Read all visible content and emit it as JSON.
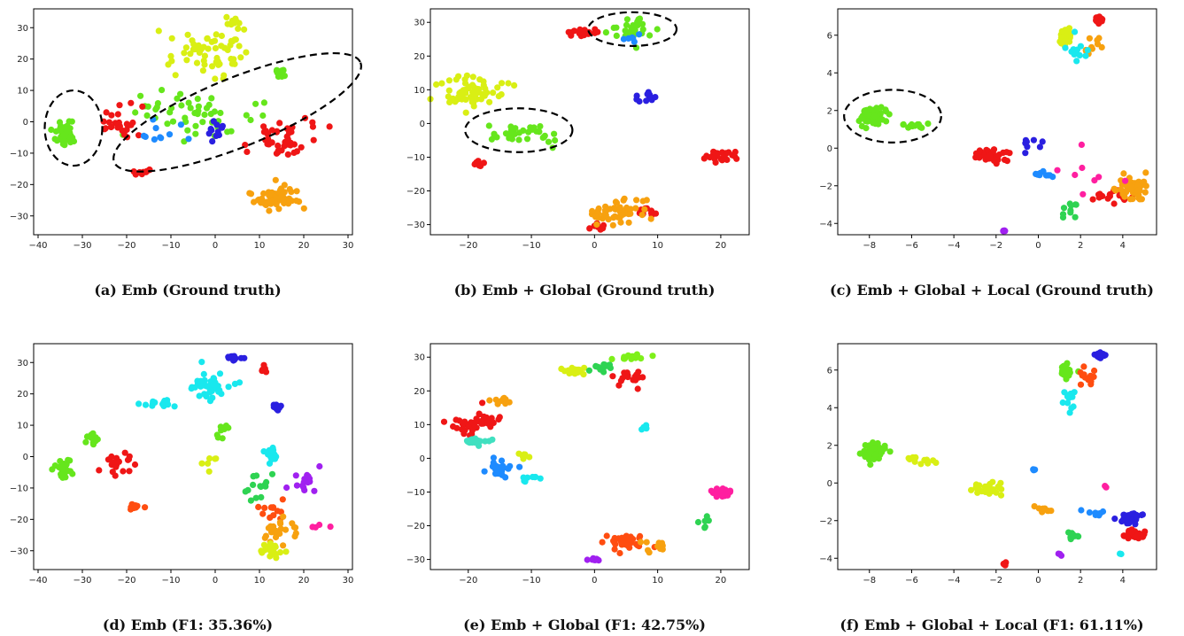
{
  "captions": {
    "a": "(a) Emb (Ground truth)",
    "b": "(b) Emb + Global (Ground truth)",
    "c": "(c) Emb + Global + Local (Ground truth)",
    "d": "(d) Emb (F1: 35.36%)",
    "e": "(e) Emb + Global (F1: 42.75%)",
    "f": "(f) Emb + Global + Local (F1: 61.11%)"
  },
  "chart_data": [
    {
      "id": "a",
      "type": "scatter",
      "xlim": [
        -41,
        31
      ],
      "ylim": [
        -36,
        36
      ],
      "xticks": [
        -40,
        -30,
        -20,
        -10,
        0,
        10,
        20,
        30
      ],
      "yticks": [
        -30,
        -20,
        -10,
        0,
        10,
        20,
        30
      ],
      "grid": false,
      "ellipses": [
        {
          "cx": -32,
          "cy": -2,
          "rx": 6.5,
          "ry": 12,
          "angle": 0
        },
        {
          "cx": 5,
          "cy": 3,
          "rx": 30,
          "ry": 11,
          "angle": 22
        }
      ],
      "clusters": [
        {
          "color": "#d9ef14",
          "cx": -2,
          "cy": 22,
          "sx": 8,
          "sy": 6,
          "n": 60
        },
        {
          "color": "#d9ef14",
          "cx": 4,
          "cy": 32,
          "sx": 2,
          "sy": 1,
          "n": 8
        },
        {
          "color": "#66e61c",
          "cx": -34,
          "cy": -4,
          "sx": 2,
          "sy": 3,
          "n": 35
        },
        {
          "color": "#66e61c",
          "cx": -5,
          "cy": 2,
          "sx": 12,
          "sy": 6,
          "n": 50
        },
        {
          "color": "#66e61c",
          "cx": 15,
          "cy": 16,
          "sx": 1.5,
          "sy": 1.5,
          "n": 10
        },
        {
          "color": "#ef1616",
          "cx": 15,
          "cy": -6,
          "sx": 6,
          "sy": 5,
          "n": 45
        },
        {
          "color": "#ef1616",
          "cx": -22,
          "cy": 0,
          "sx": 4,
          "sy": 4,
          "n": 25
        },
        {
          "color": "#ef1616",
          "cx": -17,
          "cy": -16,
          "sx": 2,
          "sy": 1,
          "n": 10
        },
        {
          "color": "#f7a10f",
          "cx": 14,
          "cy": -24,
          "sx": 5,
          "sy": 4,
          "n": 55
        },
        {
          "color": "#2a1fe0",
          "cx": 0,
          "cy": -2,
          "sx": 2,
          "sy": 3,
          "n": 12
        },
        {
          "color": "#1e8bff",
          "cx": -12,
          "cy": -4,
          "sx": 5,
          "sy": 4,
          "n": 10
        }
      ]
    },
    {
      "id": "b",
      "type": "scatter",
      "xlim": [
        -26,
        24.5
      ],
      "ylim": [
        -33,
        34
      ],
      "xticks": [
        -20,
        -10,
        0,
        10,
        20
      ],
      "yticks": [
        -30,
        -20,
        -10,
        0,
        10,
        20,
        30
      ],
      "grid": false,
      "ellipses": [
        {
          "cx": 6,
          "cy": 28,
          "rx": 7,
          "ry": 5,
          "angle": 0
        },
        {
          "cx": -12,
          "cy": -2,
          "rx": 8.5,
          "ry": 6.5,
          "angle": 0
        }
      ],
      "clusters": [
        {
          "color": "#d9ef14",
          "cx": -19,
          "cy": 9,
          "sx": 4,
          "sy": 4,
          "n": 60
        },
        {
          "color": "#66e61c",
          "cx": -11,
          "cy": -3,
          "sx": 4,
          "sy": 2.5,
          "n": 35
        },
        {
          "color": "#66e61c",
          "cx": 6,
          "cy": 28,
          "sx": 3,
          "sy": 3,
          "n": 30
        },
        {
          "color": "#ef1616",
          "cx": -2,
          "cy": 27,
          "sx": 2,
          "sy": 1,
          "n": 25
        },
        {
          "color": "#ef1616",
          "cx": 20,
          "cy": -10,
          "sx": 2,
          "sy": 1.5,
          "n": 25
        },
        {
          "color": "#ef1616",
          "cx": -19,
          "cy": -12,
          "sx": 1,
          "sy": 1,
          "n": 8
        },
        {
          "color": "#ef1616",
          "cx": 8,
          "cy": -26,
          "sx": 2,
          "sy": 2,
          "n": 12
        },
        {
          "color": "#ef1616",
          "cx": 1,
          "cy": -31,
          "sx": 1.5,
          "sy": 1,
          "n": 8
        },
        {
          "color": "#f7a10f",
          "cx": 4,
          "cy": -26,
          "sx": 4,
          "sy": 3,
          "n": 50
        },
        {
          "color": "#2a1fe0",
          "cx": 9,
          "cy": 8,
          "sx": 3,
          "sy": 2,
          "n": 10
        },
        {
          "color": "#1e8bff",
          "cx": 6,
          "cy": 25,
          "sx": 1.5,
          "sy": 1.5,
          "n": 6
        }
      ]
    },
    {
      "id": "c",
      "type": "scatter",
      "xlim": [
        -9.5,
        5.6
      ],
      "ylim": [
        -4.6,
        7.4
      ],
      "xticks": [
        -8,
        -6,
        -4,
        -2,
        0,
        2,
        4
      ],
      "yticks": [
        -4,
        -2,
        0,
        2,
        4,
        6
      ],
      "grid": false,
      "ellipses": [
        {
          "cx": -6.9,
          "cy": 1.7,
          "rx": 2.3,
          "ry": 1.4,
          "angle": 0
        }
      ],
      "clusters": [
        {
          "color": "#66e61c",
          "cx": -7.8,
          "cy": 1.7,
          "sx": 0.5,
          "sy": 0.4,
          "n": 70
        },
        {
          "color": "#66e61c",
          "cx": -6,
          "cy": 1.2,
          "sx": 0.7,
          "sy": 0.15,
          "n": 15
        },
        {
          "color": "#d9ef14",
          "cx": 1.3,
          "cy": 6,
          "sx": 0.3,
          "sy": 0.4,
          "n": 25
        },
        {
          "color": "#ef1616",
          "cx": 2.9,
          "cy": 6.8,
          "sx": 0.2,
          "sy": 0.15,
          "n": 20
        },
        {
          "color": "#ef1616",
          "cx": -2.3,
          "cy": -0.4,
          "sx": 0.7,
          "sy": 0.3,
          "n": 35
        },
        {
          "color": "#ef1616",
          "cx": 3.6,
          "cy": -2.6,
          "sx": 0.8,
          "sy": 0.3,
          "n": 15
        },
        {
          "color": "#f7a10f",
          "cx": 4.5,
          "cy": -2.1,
          "sx": 0.6,
          "sy": 0.5,
          "n": 50
        },
        {
          "color": "#f7a10f",
          "cx": 2.5,
          "cy": 5.5,
          "sx": 0.4,
          "sy": 0.5,
          "n": 10
        },
        {
          "color": "#19e8ee",
          "cx": 1.8,
          "cy": 5,
          "sx": 0.4,
          "sy": 0.7,
          "n": 12
        },
        {
          "color": "#1e8bff",
          "cx": 0.3,
          "cy": -1.4,
          "sx": 0.6,
          "sy": 0.15,
          "n": 10
        },
        {
          "color": "#2a1fe0",
          "cx": -0.5,
          "cy": 0.2,
          "sx": 0.5,
          "sy": 0.5,
          "n": 8
        },
        {
          "color": "#a020f0",
          "cx": -1.6,
          "cy": -4.4,
          "sx": 0.1,
          "sy": 0.1,
          "n": 5
        },
        {
          "color": "#2ed352",
          "cx": 1.5,
          "cy": -3.2,
          "sx": 0.4,
          "sy": 0.5,
          "n": 10
        },
        {
          "color": "#ff1fa0",
          "cx": 2.5,
          "cy": -1.5,
          "sx": 1,
          "sy": 1,
          "n": 8
        }
      ]
    },
    {
      "id": "d",
      "type": "scatter",
      "xlim": [
        -41,
        31
      ],
      "ylim": [
        -36,
        36
      ],
      "xticks": [
        -40,
        -30,
        -20,
        -10,
        0,
        10,
        20,
        30
      ],
      "yticks": [
        -30,
        -20,
        -10,
        0,
        10,
        20,
        30
      ],
      "grid": false,
      "clusters": [
        {
          "color": "#19e8ee",
          "cx": -1,
          "cy": 23,
          "sx": 4,
          "sy": 4,
          "n": 45
        },
        {
          "color": "#19e8ee",
          "cx": -12,
          "cy": 17,
          "sx": 3,
          "sy": 1,
          "n": 15
        },
        {
          "color": "#19e8ee",
          "cx": 13,
          "cy": 0,
          "sx": 2,
          "sy": 2,
          "n": 18
        },
        {
          "color": "#66e61c",
          "cx": -34,
          "cy": -4,
          "sx": 2,
          "sy": 3,
          "n": 30
        },
        {
          "color": "#66e61c",
          "cx": -28,
          "cy": 6,
          "sx": 2,
          "sy": 2,
          "n": 12
        },
        {
          "color": "#66e61c",
          "cx": 2,
          "cy": 8,
          "sx": 1.5,
          "sy": 1.5,
          "n": 8
        },
        {
          "color": "#2a1fe0",
          "cx": 4,
          "cy": 32,
          "sx": 1.5,
          "sy": 1,
          "n": 12
        },
        {
          "color": "#2a1fe0",
          "cx": 14,
          "cy": 16,
          "sx": 1,
          "sy": 1,
          "n": 10
        },
        {
          "color": "#ef1616",
          "cx": -22,
          "cy": -2,
          "sx": 4,
          "sy": 3,
          "n": 20
        },
        {
          "color": "#ef1616",
          "cx": 11,
          "cy": 28,
          "sx": 1,
          "sy": 1.5,
          "n": 6
        },
        {
          "color": "#ff4d10",
          "cx": -18,
          "cy": -16,
          "sx": 2,
          "sy": 1,
          "n": 10
        },
        {
          "color": "#ff4d10",
          "cx": 13,
          "cy": -17,
          "sx": 3,
          "sy": 3,
          "n": 12
        },
        {
          "color": "#f7a10f",
          "cx": 14,
          "cy": -24,
          "sx": 3,
          "sy": 3,
          "n": 25
        },
        {
          "color": "#d9ef14",
          "cx": 12,
          "cy": -30,
          "sx": 3,
          "sy": 2,
          "n": 20
        },
        {
          "color": "#d9ef14",
          "cx": 0,
          "cy": -2,
          "sx": 1.5,
          "sy": 2,
          "n": 6
        },
        {
          "color": "#a020f0",
          "cx": 20,
          "cy": -7,
          "sx": 3,
          "sy": 3,
          "n": 15
        },
        {
          "color": "#2ed352",
          "cx": 10,
          "cy": -10,
          "sx": 3,
          "sy": 5,
          "n": 15
        },
        {
          "color": "#ff1fa0",
          "cx": 25,
          "cy": -22,
          "sx": 2,
          "sy": 1,
          "n": 4
        }
      ]
    },
    {
      "id": "e",
      "type": "scatter",
      "xlim": [
        -26,
        24.5
      ],
      "ylim": [
        -33,
        34
      ],
      "xticks": [
        -20,
        -10,
        0,
        10,
        20
      ],
      "yticks": [
        -30,
        -20,
        -10,
        0,
        10,
        20,
        30
      ],
      "grid": false,
      "clusters": [
        {
          "color": "#ef1616",
          "cx": -19,
          "cy": 11,
          "sx": 3,
          "sy": 3,
          "n": 45
        },
        {
          "color": "#ef1616",
          "cx": 6,
          "cy": 24,
          "sx": 2,
          "sy": 1.5,
          "n": 20
        },
        {
          "color": "#ff4d10",
          "cx": 5,
          "cy": -25,
          "sx": 3,
          "sy": 2.5,
          "n": 35
        },
        {
          "color": "#f7a10f",
          "cx": -15,
          "cy": 17,
          "sx": 1.5,
          "sy": 1,
          "n": 10
        },
        {
          "color": "#f7a10f",
          "cx": 10,
          "cy": -26,
          "sx": 1.5,
          "sy": 1.5,
          "n": 10
        },
        {
          "color": "#d9ef14",
          "cx": -3,
          "cy": 26,
          "sx": 1.5,
          "sy": 1,
          "n": 20
        },
        {
          "color": "#d9ef14",
          "cx": -11,
          "cy": 1,
          "sx": 1.5,
          "sy": 1.5,
          "n": 8
        },
        {
          "color": "#7ef01a",
          "cx": 6,
          "cy": 30,
          "sx": 2,
          "sy": 0.5,
          "n": 15
        },
        {
          "color": "#2ed352",
          "cx": 1,
          "cy": 27,
          "sx": 1.5,
          "sy": 1,
          "n": 15
        },
        {
          "color": "#2ed352",
          "cx": 17,
          "cy": -18,
          "sx": 1,
          "sy": 2,
          "n": 6
        },
        {
          "color": "#40e0c0",
          "cx": -19,
          "cy": 5,
          "sx": 2,
          "sy": 1,
          "n": 20
        },
        {
          "color": "#1e8bff",
          "cx": -15,
          "cy": -3,
          "sx": 2,
          "sy": 2,
          "n": 20
        },
        {
          "color": "#19e8ee",
          "cx": -10,
          "cy": -6,
          "sx": 1.5,
          "sy": 1.5,
          "n": 10
        },
        {
          "color": "#19e8ee",
          "cx": 8,
          "cy": 9,
          "sx": 1,
          "sy": 0.6,
          "n": 6
        },
        {
          "color": "#a020f0",
          "cx": 0,
          "cy": -30,
          "sx": 1,
          "sy": 0.5,
          "n": 8
        },
        {
          "color": "#ff1fa0",
          "cx": 20,
          "cy": -10,
          "sx": 1.5,
          "sy": 1,
          "n": 20
        }
      ]
    },
    {
      "id": "f",
      "type": "scatter",
      "xlim": [
        -9.5,
        5.6
      ],
      "ylim": [
        -4.6,
        7.4
      ],
      "xticks": [
        -8,
        -6,
        -4,
        -2,
        0,
        2,
        4
      ],
      "yticks": [
        -4,
        -2,
        0,
        2,
        4,
        6
      ],
      "grid": false,
      "clusters": [
        {
          "color": "#66e61c",
          "cx": -7.8,
          "cy": 1.7,
          "sx": 0.45,
          "sy": 0.4,
          "n": 65
        },
        {
          "color": "#d9ef14",
          "cx": -2.3,
          "cy": -0.3,
          "sx": 0.7,
          "sy": 0.3,
          "n": 35
        },
        {
          "color": "#d9ef14",
          "cx": -5.5,
          "cy": 1.2,
          "sx": 0.6,
          "sy": 0.15,
          "n": 12
        },
        {
          "color": "#66e61c",
          "cx": 1.3,
          "cy": 6,
          "sx": 0.3,
          "sy": 0.4,
          "n": 25
        },
        {
          "color": "#2a1fe0",
          "cx": 2.9,
          "cy": 6.8,
          "sx": 0.2,
          "sy": 0.15,
          "n": 20
        },
        {
          "color": "#ff4d10",
          "cx": 2.3,
          "cy": 5.5,
          "sx": 0.4,
          "sy": 0.5,
          "n": 15
        },
        {
          "color": "#19e8ee",
          "cx": 1.5,
          "cy": 4.3,
          "sx": 0.3,
          "sy": 0.5,
          "n": 12
        },
        {
          "color": "#2a1fe0",
          "cx": 4.4,
          "cy": -1.9,
          "sx": 0.5,
          "sy": 0.3,
          "n": 35
        },
        {
          "color": "#ef1616",
          "cx": 4.5,
          "cy": -2.7,
          "sx": 0.5,
          "sy": 0.2,
          "n": 25
        },
        {
          "color": "#f7a10f",
          "cx": 0.3,
          "cy": -1.4,
          "sx": 0.3,
          "sy": 0.1,
          "n": 8
        },
        {
          "color": "#1e8bff",
          "cx": -0.2,
          "cy": 0.7,
          "sx": 0.1,
          "sy": 0.1,
          "n": 4
        },
        {
          "color": "#2ed352",
          "cx": 1.6,
          "cy": -2.8,
          "sx": 0.3,
          "sy": 0.2,
          "n": 10
        },
        {
          "color": "#ef1616",
          "cx": -1.6,
          "cy": -4.3,
          "sx": 0.1,
          "sy": 0.1,
          "n": 5
        },
        {
          "color": "#a020f0",
          "cx": 1,
          "cy": -3.8,
          "sx": 0.1,
          "sy": 0.1,
          "n": 3
        },
        {
          "color": "#1e8bff",
          "cx": 2.6,
          "cy": -1.6,
          "sx": 0.5,
          "sy": 0.2,
          "n": 8
        },
        {
          "color": "#ff1fa0",
          "cx": 3.2,
          "cy": -0.2,
          "sx": 0.1,
          "sy": 0.1,
          "n": 2
        },
        {
          "color": "#19e8ee",
          "cx": 3.9,
          "cy": -3.8,
          "sx": 0.1,
          "sy": 0.1,
          "n": 2
        }
      ]
    }
  ]
}
